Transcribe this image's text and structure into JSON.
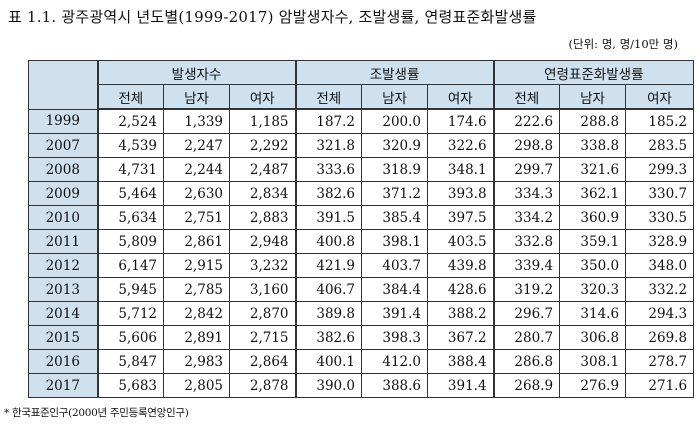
{
  "title": "표 1.1. 광주광역시 년도별(1999-2017) 암발생자수, 조발생률, 연령표준화발생률",
  "unit": "(단위: 명, 명/10만 명)",
  "header": {
    "groups": [
      "발생자수",
      "조발생률",
      "연령표준화발생률"
    ],
    "subs": [
      "전체",
      "남자",
      "여자",
      "전체",
      "남자",
      "여자",
      "전체",
      "남자",
      "여자"
    ]
  },
  "rows": [
    {
      "year": "1999",
      "cells": [
        "2,524",
        "1,339",
        "1,185",
        "187.2",
        "200.0",
        "174.6",
        "222.6",
        "288.8",
        "185.2"
      ]
    },
    {
      "year": "2007",
      "cells": [
        "4,539",
        "2,247",
        "2,292",
        "321.8",
        "320.9",
        "322.6",
        "298.8",
        "338.8",
        "283.5"
      ]
    },
    {
      "year": "2008",
      "cells": [
        "4,731",
        "2,244",
        "2,487",
        "333.6",
        "318.9",
        "348.1",
        "299.7",
        "321.6",
        "299.3"
      ]
    },
    {
      "year": "2009",
      "cells": [
        "5,464",
        "2,630",
        "2,834",
        "382.6",
        "371.2",
        "393.8",
        "334.3",
        "362.1",
        "330.7"
      ]
    },
    {
      "year": "2010",
      "cells": [
        "5,634",
        "2,751",
        "2,883",
        "391.5",
        "385.4",
        "397.5",
        "334.2",
        "360.9",
        "330.5"
      ]
    },
    {
      "year": "2011",
      "cells": [
        "5,809",
        "2,861",
        "2,948",
        "400.8",
        "398.1",
        "403.5",
        "332.8",
        "359.1",
        "328.9"
      ]
    },
    {
      "year": "2012",
      "cells": [
        "6,147",
        "2,915",
        "3,232",
        "421.9",
        "403.7",
        "439.8",
        "339.4",
        "350.0",
        "348.0"
      ]
    },
    {
      "year": "2013",
      "cells": [
        "5,945",
        "2,785",
        "3,160",
        "406.7",
        "384.4",
        "428.6",
        "319.2",
        "320.3",
        "332.2"
      ]
    },
    {
      "year": "2014",
      "cells": [
        "5,712",
        "2,842",
        "2,870",
        "389.8",
        "391.4",
        "388.2",
        "296.7",
        "314.6",
        "294.3"
      ]
    },
    {
      "year": "2015",
      "cells": [
        "5,606",
        "2,891",
        "2,715",
        "382.6",
        "398.3",
        "367.2",
        "280.7",
        "306.8",
        "269.8"
      ]
    },
    {
      "year": "2016",
      "cells": [
        "5,847",
        "2,983",
        "2,864",
        "400.1",
        "412.0",
        "388.4",
        "286.8",
        "308.1",
        "278.7"
      ]
    },
    {
      "year": "2017",
      "cells": [
        "5,683",
        "2,805",
        "2,878",
        "390.0",
        "388.6",
        "391.4",
        "268.9",
        "276.9",
        "271.6"
      ]
    }
  ],
  "footnote": "* 한국표준인구(2000년 주민등록연앙인구)"
}
